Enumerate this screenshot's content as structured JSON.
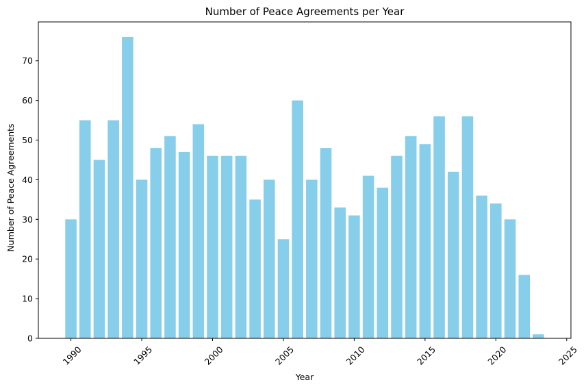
{
  "chart_data": {
    "type": "bar",
    "title": "Number of Peace Agreements per Year",
    "xlabel": "Year",
    "ylabel": "Number of Peace Agreements",
    "color": "#87ceeb",
    "x": [
      1990,
      1991,
      1992,
      1993,
      1994,
      1995,
      1996,
      1997,
      1998,
      1999,
      2000,
      2001,
      2002,
      2003,
      2004,
      2005,
      2006,
      2007,
      2008,
      2009,
      2010,
      2011,
      2012,
      2013,
      2014,
      2015,
      2016,
      2017,
      2018,
      2019,
      2020,
      2021,
      2022,
      2023
    ],
    "values": [
      30,
      55,
      45,
      55,
      76,
      40,
      48,
      51,
      47,
      54,
      46,
      46,
      46,
      35,
      40,
      25,
      60,
      40,
      48,
      33,
      31,
      41,
      38,
      46,
      51,
      49,
      56,
      42,
      56,
      36,
      34,
      30,
      16,
      1
    ],
    "xlim": [
      1987.7,
      2025.3
    ],
    "ylim": [
      0,
      79.8
    ],
    "x_ticks": [
      1990,
      1995,
      2000,
      2005,
      2010,
      2015,
      2020,
      2025
    ],
    "y_ticks": [
      0,
      10,
      20,
      30,
      40,
      50,
      60,
      70
    ],
    "grid": false,
    "legend": "none"
  }
}
